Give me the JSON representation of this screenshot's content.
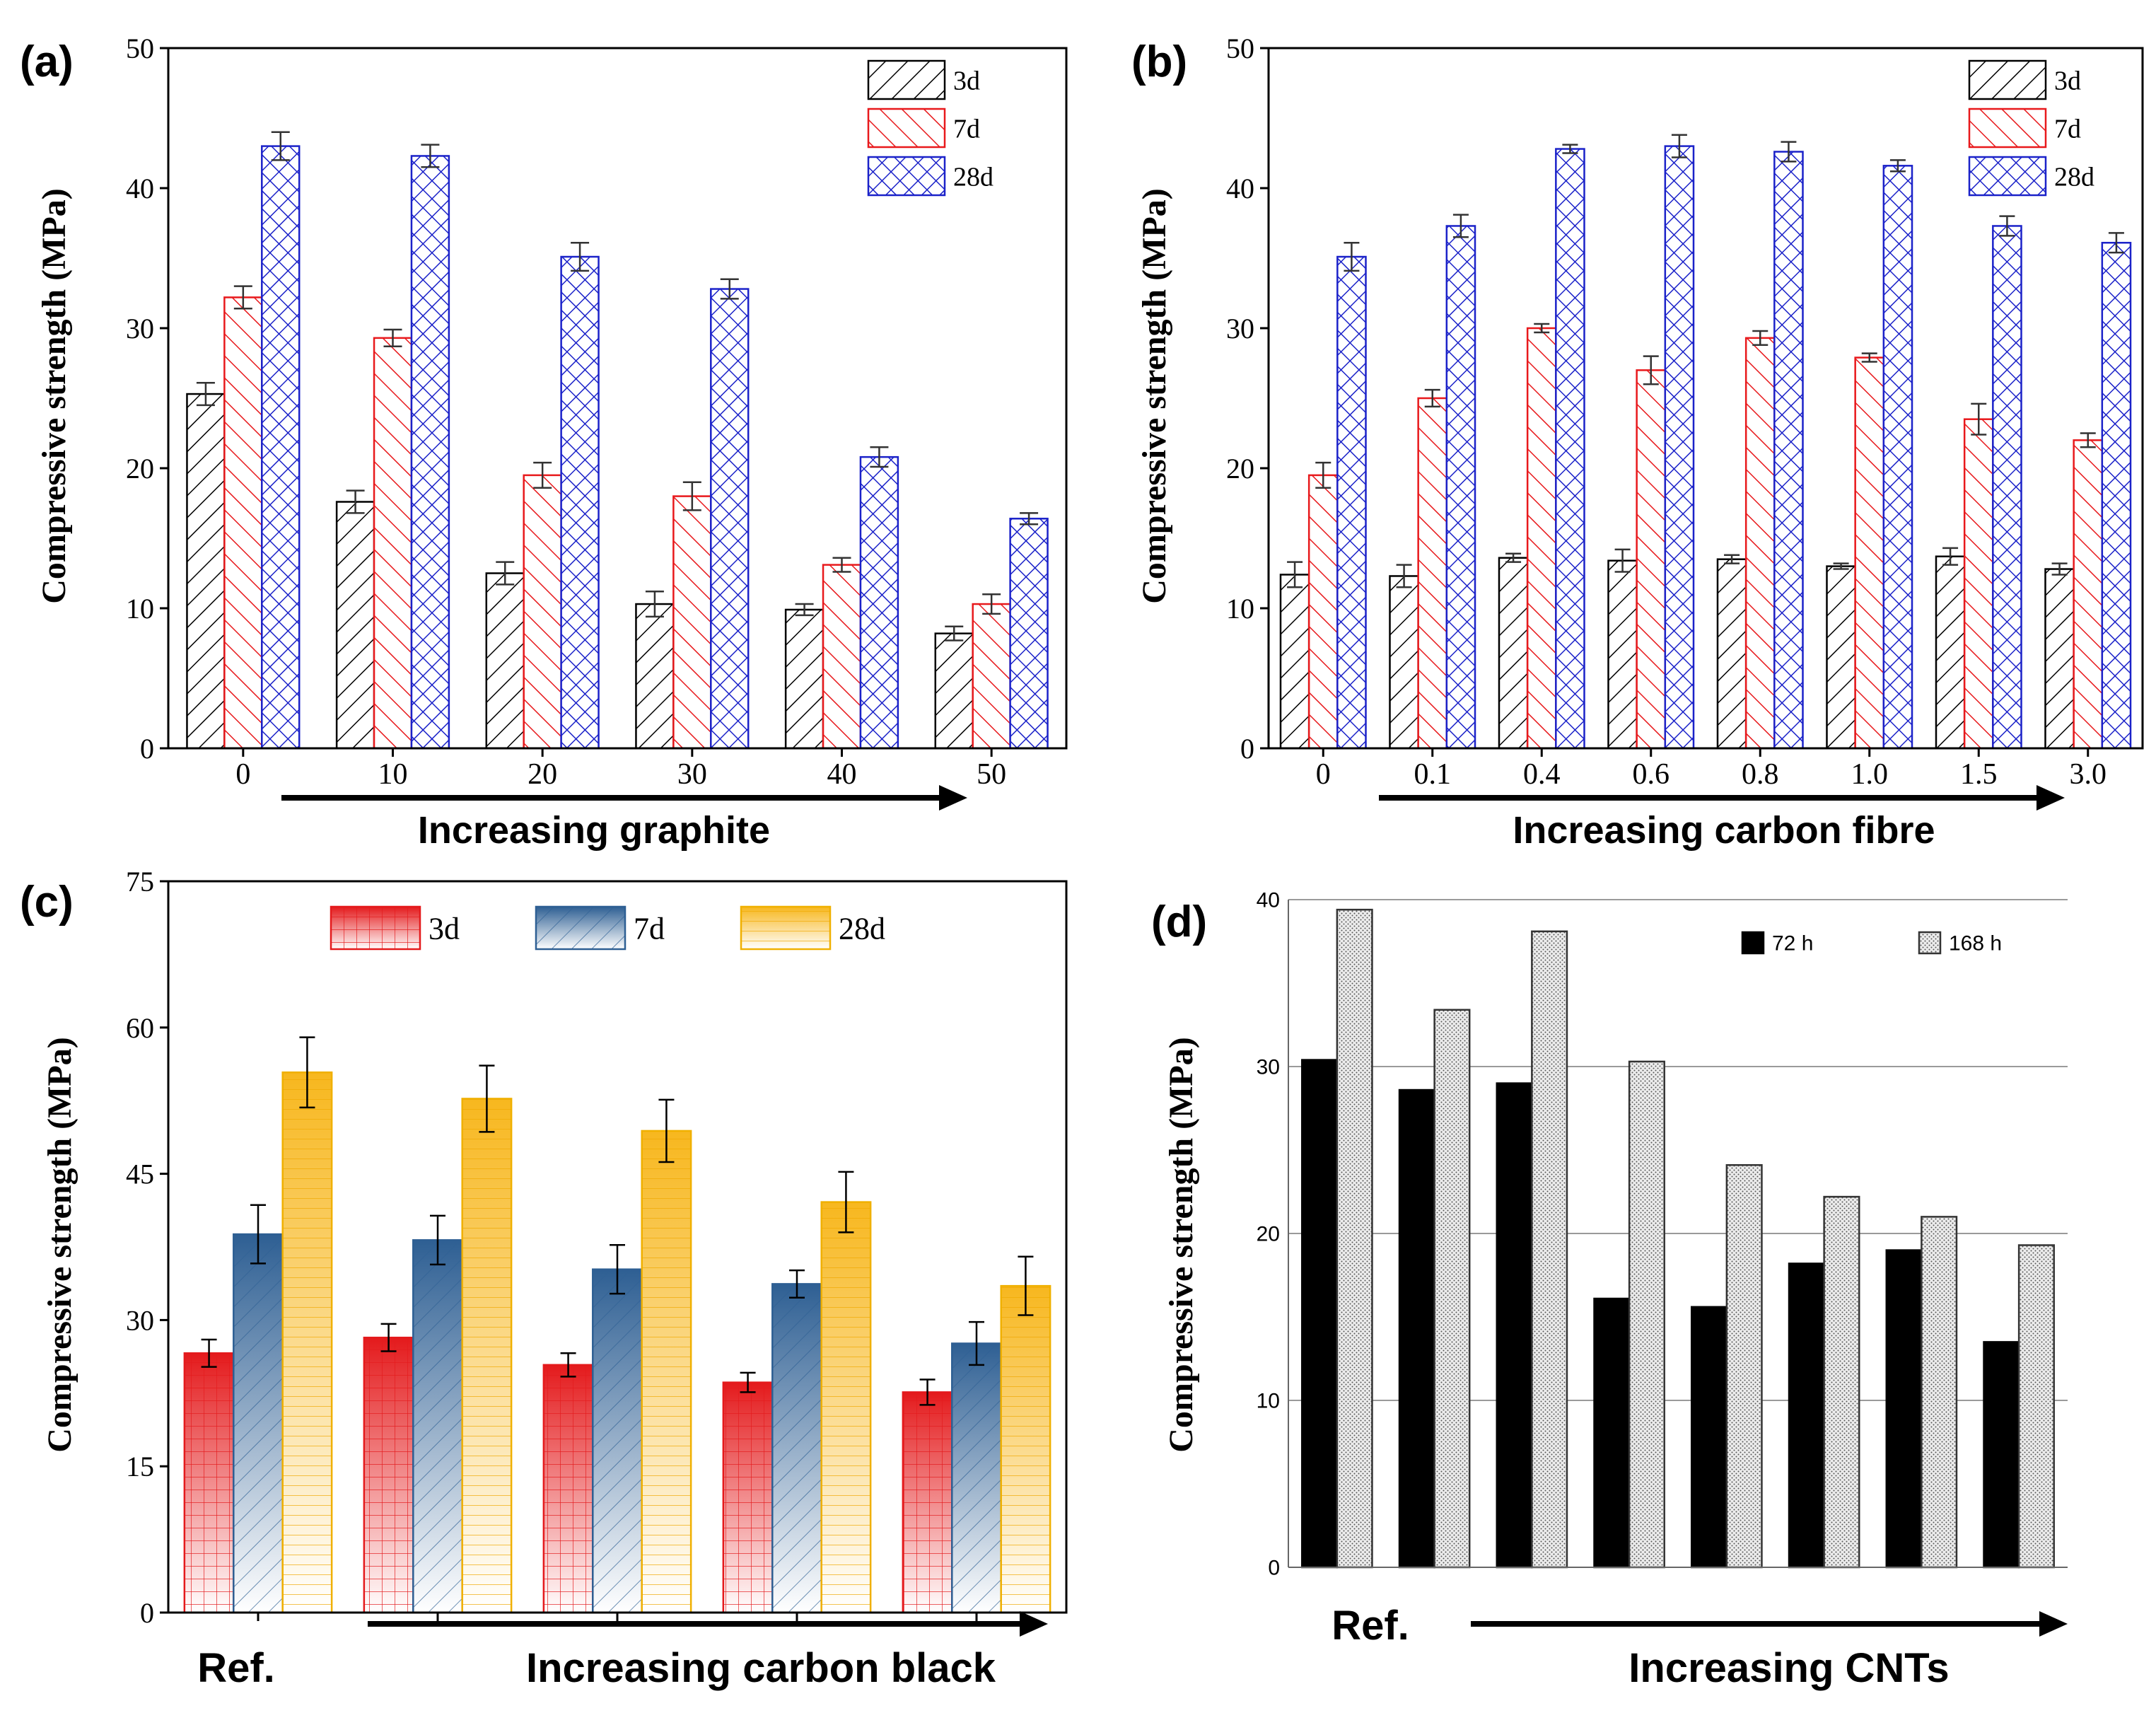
{
  "chart_data": [
    {
      "id": "a",
      "type": "bar",
      "panel_label": "(a)",
      "categories": [
        "0",
        "10",
        "20",
        "30",
        "40",
        "50"
      ],
      "series": [
        {
          "name": "3d",
          "values": [
            25.3,
            17.6,
            12.5,
            10.3,
            9.9,
            8.2
          ],
          "errors": [
            0.8,
            0.8,
            0.8,
            0.9,
            0.4,
            0.5
          ]
        },
        {
          "name": "7d",
          "values": [
            32.2,
            29.3,
            19.5,
            18.0,
            13.1,
            10.3
          ],
          "errors": [
            0.8,
            0.6,
            0.9,
            1.0,
            0.5,
            0.7
          ]
        },
        {
          "name": "28d",
          "values": [
            43.0,
            42.3,
            35.1,
            32.8,
            20.8,
            16.4
          ],
          "errors": [
            1.0,
            0.8,
            1.0,
            0.7,
            0.7,
            0.4
          ]
        }
      ],
      "ylabel": "Compressive strength (MPa)",
      "ylim": [
        0,
        50
      ],
      "yticks": [
        "0",
        "10",
        "20",
        "30",
        "40",
        "50"
      ],
      "arrow_label": "Increasing graphite",
      "legend_position": "top-right"
    },
    {
      "id": "b",
      "type": "bar",
      "panel_label": "(b)",
      "categories": [
        "0",
        "0.1",
        "0.4",
        "0.6",
        "0.8",
        "1.0",
        "1.5",
        "3.0"
      ],
      "series": [
        {
          "name": "3d",
          "values": [
            12.4,
            12.3,
            13.6,
            13.4,
            13.5,
            13.0,
            13.7,
            12.8
          ],
          "errors": [
            0.9,
            0.8,
            0.3,
            0.8,
            0.3,
            0.2,
            0.6,
            0.4
          ]
        },
        {
          "name": "7d",
          "values": [
            19.5,
            25.0,
            30.0,
            27.0,
            29.3,
            27.9,
            23.5,
            22.0
          ],
          "errors": [
            0.9,
            0.6,
            0.3,
            1.0,
            0.5,
            0.3,
            1.1,
            0.5
          ]
        },
        {
          "name": "28d",
          "values": [
            35.1,
            37.3,
            42.8,
            43.0,
            42.6,
            41.6,
            37.3,
            36.1
          ],
          "errors": [
            1.0,
            0.8,
            0.3,
            0.8,
            0.7,
            0.4,
            0.7,
            0.7
          ]
        }
      ],
      "ylabel": "Compressive strength (MPa)",
      "ylim": [
        0,
        50
      ],
      "yticks": [
        "0",
        "10",
        "20",
        "30",
        "40",
        "50"
      ],
      "arrow_label": "Increasing carbon fibre",
      "legend_position": "top-right"
    },
    {
      "id": "c",
      "type": "bar",
      "panel_label": "(c)",
      "categories": [
        "Ref.",
        "",
        "",
        "",
        ""
      ],
      "series": [
        {
          "name": "3d",
          "values": [
            26.6,
            28.2,
            25.4,
            23.6,
            22.6
          ],
          "errors": [
            1.4,
            1.4,
            1.2,
            1.0,
            1.3
          ]
        },
        {
          "name": "7d",
          "values": [
            38.8,
            38.2,
            35.2,
            33.7,
            27.6
          ],
          "errors": [
            3.0,
            2.5,
            2.5,
            1.4,
            2.2
          ]
        },
        {
          "name": "28d",
          "values": [
            55.4,
            52.7,
            49.4,
            42.1,
            33.5
          ],
          "errors": [
            3.6,
            3.4,
            3.2,
            3.1,
            3.0
          ]
        }
      ],
      "ylabel": "Compressive strength (MPa)",
      "ylim": [
        0,
        75
      ],
      "yticks": [
        "0",
        "15",
        "30",
        "45",
        "60",
        "75"
      ],
      "ref_label": "Ref.",
      "arrow_label": "Increasing carbon black",
      "legend_position": "top"
    },
    {
      "id": "d",
      "type": "bar",
      "panel_label": "(d)",
      "categories": [
        "Ref.",
        "",
        "",
        "",
        "",
        "",
        "",
        ""
      ],
      "series": [
        {
          "name": "72 h",
          "values": [
            30.4,
            28.6,
            29.0,
            16.1,
            15.6,
            18.2,
            19.0,
            13.5
          ]
        },
        {
          "name": "168 h",
          "values": [
            39.4,
            33.4,
            38.1,
            30.3,
            24.1,
            22.2,
            21.0,
            19.3
          ]
        }
      ],
      "ylabel": "Compressive strength (MPa)",
      "ylim": [
        0,
        40
      ],
      "yticks": [
        "0",
        "10",
        "20",
        "30",
        "40"
      ],
      "grid": true,
      "ref_label": "Ref.",
      "arrow_label": "Increasing CNTs",
      "legend_position": "top-right"
    }
  ]
}
